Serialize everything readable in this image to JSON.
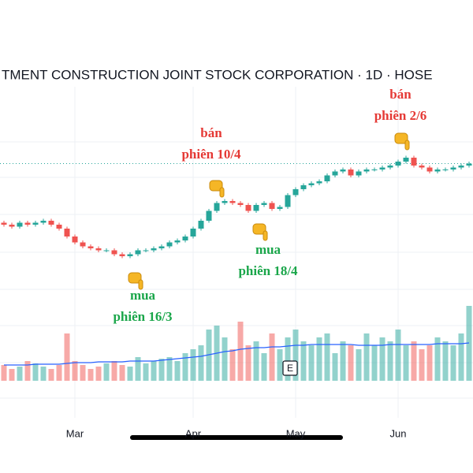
{
  "chart_data": {
    "type": "candlestick",
    "title": "TMENT CONSTRUCTION JOINT STOCK CORPORATION · 1D · HOSE",
    "categories": [
      null,
      null,
      null,
      null,
      null,
      null,
      null,
      null,
      null,
      "Mar",
      null,
      null,
      null,
      null,
      null,
      null,
      null,
      null,
      null,
      null,
      null,
      null,
      null,
      null,
      "Apr",
      null,
      null,
      null,
      null,
      null,
      null,
      null,
      null,
      null,
      null,
      null,
      null,
      "May",
      null,
      null,
      null,
      null,
      null,
      null,
      null,
      null,
      null,
      null,
      null,
      null,
      "Jun",
      null,
      null,
      null,
      null,
      null,
      null,
      null,
      null,
      null
    ],
    "open": [
      47,
      46,
      45,
      47,
      46,
      47,
      48,
      46,
      44,
      40,
      37,
      35,
      34,
      33,
      33,
      31,
      30,
      31,
      33,
      33,
      34,
      35,
      37,
      38,
      40,
      44,
      48,
      53,
      57,
      58,
      57,
      56,
      53,
      56,
      57,
      54,
      55,
      61,
      64,
      66,
      67,
      68,
      71,
      73,
      74,
      71,
      73,
      74,
      74,
      75,
      76,
      78,
      80,
      76,
      75,
      73,
      74,
      74,
      75,
      76
    ],
    "high": [
      48,
      47,
      48,
      48,
      48,
      49,
      49,
      47,
      45,
      41,
      38,
      36,
      35,
      34,
      34,
      32,
      32,
      34,
      34,
      35,
      36,
      38,
      39,
      41,
      45,
      49,
      54,
      58,
      59,
      59,
      58,
      57,
      57,
      58,
      58,
      56,
      62,
      65,
      67,
      68,
      69,
      72,
      74,
      75,
      75,
      74,
      75,
      75,
      76,
      77,
      79,
      81,
      81,
      77,
      76,
      75,
      75,
      76,
      77,
      78
    ],
    "low": [
      45,
      44,
      44,
      45,
      45,
      46,
      45,
      43,
      39,
      36,
      34,
      33,
      32,
      32,
      30,
      29,
      29,
      30,
      32,
      32,
      33,
      34,
      36,
      37,
      39,
      43,
      47,
      52,
      56,
      56,
      55,
      52,
      52,
      55,
      53,
      53,
      54,
      60,
      63,
      65,
      66,
      67,
      70,
      72,
      70,
      70,
      72,
      73,
      73,
      74,
      75,
      77,
      75,
      74,
      72,
      72,
      73,
      73,
      74,
      75
    ],
    "close": [
      46,
      45,
      47,
      46,
      47,
      48,
      46,
      44,
      40,
      37,
      35,
      34,
      33,
      33,
      31,
      30,
      31,
      33,
      33,
      34,
      35,
      37,
      38,
      40,
      44,
      48,
      53,
      57,
      58,
      57,
      56,
      53,
      56,
      57,
      54,
      55,
      61,
      64,
      66,
      67,
      68,
      71,
      73,
      74,
      71,
      73,
      74,
      74,
      75,
      76,
      78,
      80,
      76,
      75,
      73,
      74,
      74,
      75,
      76,
      77
    ],
    "ylim": [
      0,
      120
    ],
    "colors": {
      "up": "#26a69a",
      "down": "#ef5350",
      "last": "#26a69a"
    },
    "volume": {
      "values": [
        20,
        15,
        18,
        25,
        22,
        18,
        15,
        20,
        60,
        25,
        20,
        15,
        18,
        22,
        25,
        20,
        18,
        30,
        22,
        25,
        28,
        30,
        25,
        35,
        40,
        45,
        65,
        70,
        55,
        40,
        75,
        45,
        50,
        35,
        60,
        40,
        55,
        65,
        50,
        45,
        55,
        60,
        35,
        50,
        45,
        40,
        60,
        45,
        55,
        50,
        65,
        45,
        50,
        40,
        45,
        55,
        50,
        45,
        60,
        95
      ],
      "ylim": [
        0,
        100
      ]
    },
    "volume_ma": {
      "values": [
        20,
        20,
        20,
        20,
        21,
        21,
        21,
        21,
        22,
        23,
        23,
        23,
        24,
        24,
        24,
        24,
        25,
        25,
        25,
        25,
        26,
        27,
        28,
        29,
        30,
        31,
        33,
        35,
        37,
        38,
        40,
        41,
        42,
        42,
        43,
        43,
        44,
        45,
        45,
        46,
        46,
        46,
        46,
        46,
        46,
        45,
        45,
        45,
        45,
        46,
        46,
        46,
        46,
        46,
        46,
        47,
        47,
        47,
        47,
        48
      ],
      "color": "#2962ff"
    },
    "annotations": [
      {
        "lines": [
          "bán",
          "phiên 10/4"
        ],
        "color": "#e53935"
      },
      {
        "lines": [
          "mua",
          "phiên 18/4"
        ],
        "color": "#1aa64a"
      },
      {
        "lines": [
          "mua",
          "phiên 16/3"
        ],
        "color": "#1aa64a"
      },
      {
        "lines": [
          "bán",
          "phiên 2/6"
        ],
        "color": "#e53935"
      }
    ],
    "badge": "E"
  }
}
